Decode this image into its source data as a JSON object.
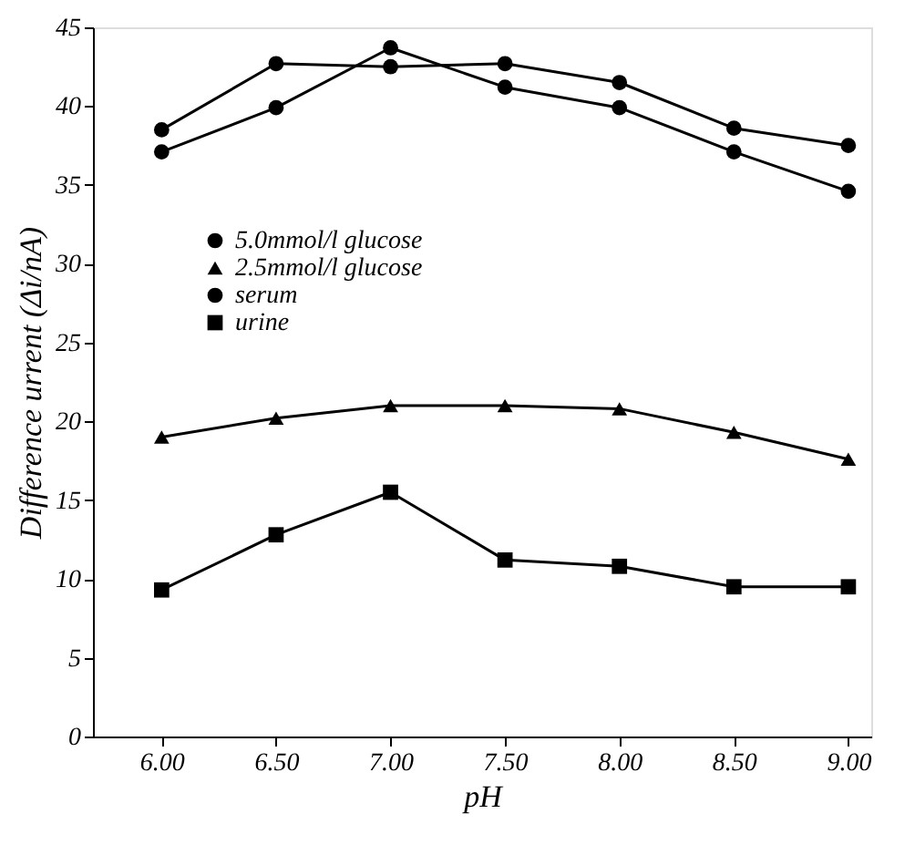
{
  "chart_data": {
    "type": "line",
    "xlabel": "pH",
    "ylabel": "Difference urrent (Δi/nA)",
    "x": [
      6.0,
      6.5,
      7.0,
      7.5,
      8.0,
      8.5,
      9.0
    ],
    "series": [
      {
        "name": "5.0mmol/l glucose",
        "color": "#000000",
        "marker": "circle",
        "values": [
          38.5,
          42.7,
          42.5,
          42.7,
          41.5,
          38.6,
          37.5
        ]
      },
      {
        "name": "2.5mmol/l glucose",
        "color": "#000000",
        "marker": "triangle",
        "values": [
          19.0,
          20.2,
          21.0,
          21.0,
          20.8,
          19.3,
          17.6
        ]
      },
      {
        "name": "serum",
        "color": "#000000",
        "marker": "circle",
        "values": [
          37.1,
          39.9,
          43.7,
          41.2,
          39.9,
          37.1,
          34.6
        ]
      },
      {
        "name": "urine",
        "color": "#000000",
        "marker": "square",
        "values": [
          9.3,
          12.8,
          15.5,
          11.2,
          10.8,
          9.5,
          9.5
        ]
      }
    ],
    "xlim": [
      5.7,
      9.1
    ],
    "xticks": [
      {
        "value": 6.0,
        "label": "6.00"
      },
      {
        "value": 6.5,
        "label": "6.50"
      },
      {
        "value": 7.0,
        "label": "7.00"
      },
      {
        "value": 7.5,
        "label": "7.50"
      },
      {
        "value": 8.0,
        "label": "8.00"
      },
      {
        "value": 8.5,
        "label": "8.50"
      },
      {
        "value": 9.0,
        "label": "9.00"
      }
    ],
    "ylim": [
      0,
      45
    ],
    "yticks": [
      0,
      5,
      10,
      15,
      20,
      25,
      30,
      35,
      40,
      45
    ],
    "grid": false,
    "legend": "top left",
    "line_style": "solid"
  }
}
